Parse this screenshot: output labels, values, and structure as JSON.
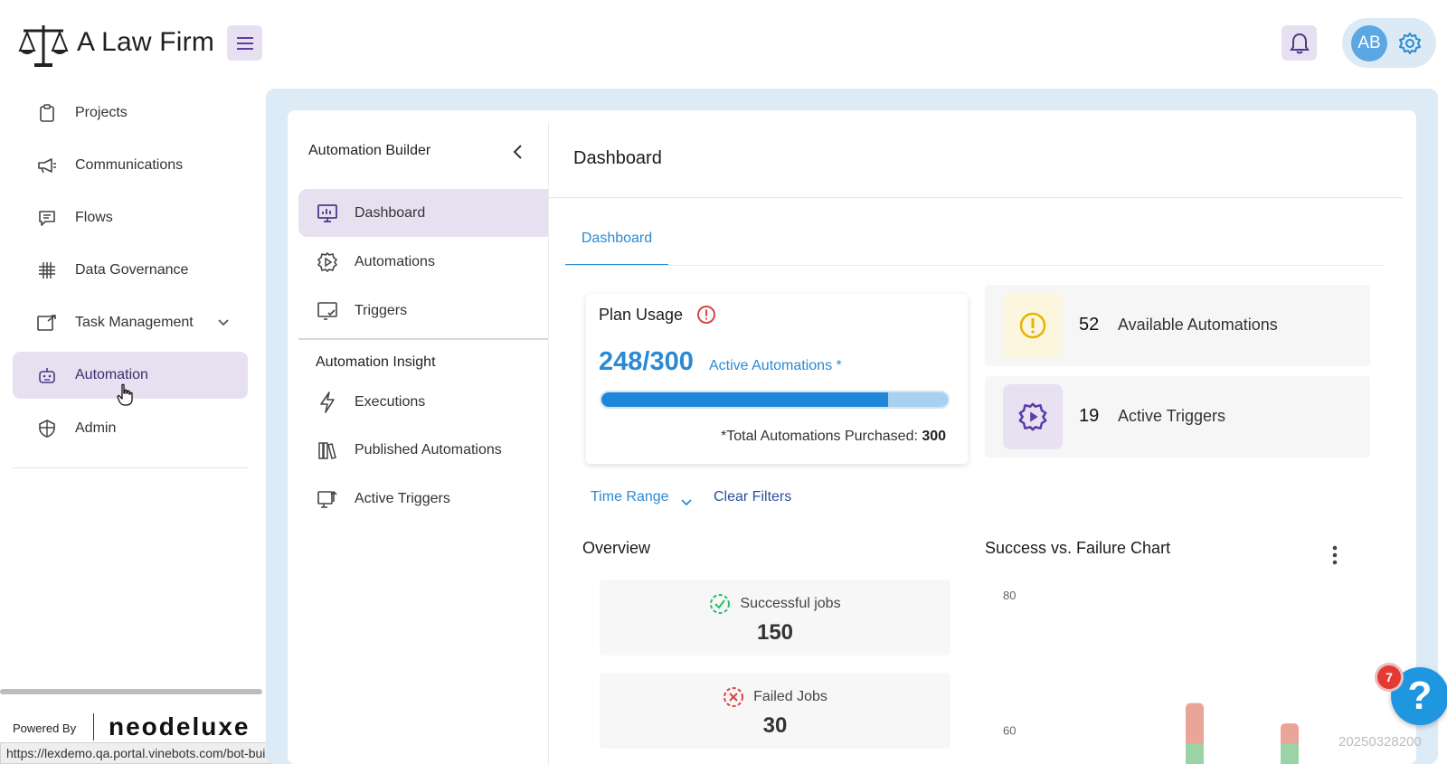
{
  "app": {
    "title": "A Law Firm",
    "logo_icon": "scales-of-justice-icon",
    "user_initials": "AB"
  },
  "colors": {
    "accent_blue": "#2b8ad3",
    "active_purple_bg": "#e6e0f1",
    "frame_blue": "#dcebf6",
    "success_green": "#2ebd6b",
    "failure_red": "#d64545"
  },
  "sidebar": {
    "items": [
      {
        "label": "Projects",
        "icon": "clipboard-icon"
      },
      {
        "label": "Communications",
        "icon": "megaphone-icon"
      },
      {
        "label": "Flows",
        "icon": "chat-icon"
      },
      {
        "label": "Data Governance",
        "icon": "hashtag-grid-icon"
      },
      {
        "label": "Task Management",
        "icon": "task-icon",
        "has_submenu": true
      },
      {
        "label": "Automation",
        "icon": "robot-icon",
        "active": true
      },
      {
        "label": "Admin",
        "icon": "shield-icon"
      }
    ],
    "powered_by": "Powered By",
    "brand": "neodeluxe"
  },
  "status_bar": {
    "url": "https://lexdemo.qa.portal.vinebots.com/bot-builder"
  },
  "builder": {
    "title": "Automation Builder",
    "items": [
      {
        "label": "Dashboard",
        "icon": "monitor-chart-icon",
        "active": true
      },
      {
        "label": "Automations",
        "icon": "gear-play-icon"
      },
      {
        "label": "Triggers",
        "icon": "screen-check-icon"
      }
    ],
    "insight_title": "Automation Insight",
    "insight_items": [
      {
        "label": "Executions",
        "icon": "lightning-icon"
      },
      {
        "label": "Published Automations",
        "icon": "books-icon"
      },
      {
        "label": "Active Triggers",
        "icon": "screen-arrow-icon"
      }
    ]
  },
  "dashboard": {
    "page_title": "Dashboard",
    "tab": "Dashboard",
    "plan": {
      "title": "Plan Usage",
      "used": "248/300",
      "used_label": "Active Automations *",
      "progress_fraction": 0.827,
      "total_prefix": "*Total Automations Purchased: ",
      "total_value": "300"
    },
    "stats": [
      {
        "value": "52",
        "label": "Available Automations",
        "icon": "exclamation-circle-icon",
        "icon_bg": "#fdf6de",
        "icon_color": "#e8b400"
      },
      {
        "value": "19",
        "label": "Active Triggers",
        "icon": "gear-play-icon",
        "icon_bg": "#e8e1f2",
        "icon_color": "#5b3fa6"
      }
    ],
    "filters": {
      "time_range": "Time Range",
      "clear": "Clear Filters"
    },
    "overview": {
      "title": "Overview",
      "successful_label": "Successful jobs",
      "successful_value": "150",
      "failed_label": "Failed Jobs",
      "failed_value": "30"
    },
    "help": {
      "badge": "7",
      "label": "?"
    },
    "build_id": "20250328200"
  },
  "chart_data": {
    "type": "bar",
    "title": "Success vs. Failure Chart",
    "yticks": [
      80,
      60
    ],
    "ylim": [
      55,
      82
    ],
    "series": [
      {
        "color": "#e9a597",
        "values": [
          64,
          61
        ]
      },
      {
        "color": "#9ad4a6",
        "values": [
          58,
          58
        ]
      }
    ]
  }
}
